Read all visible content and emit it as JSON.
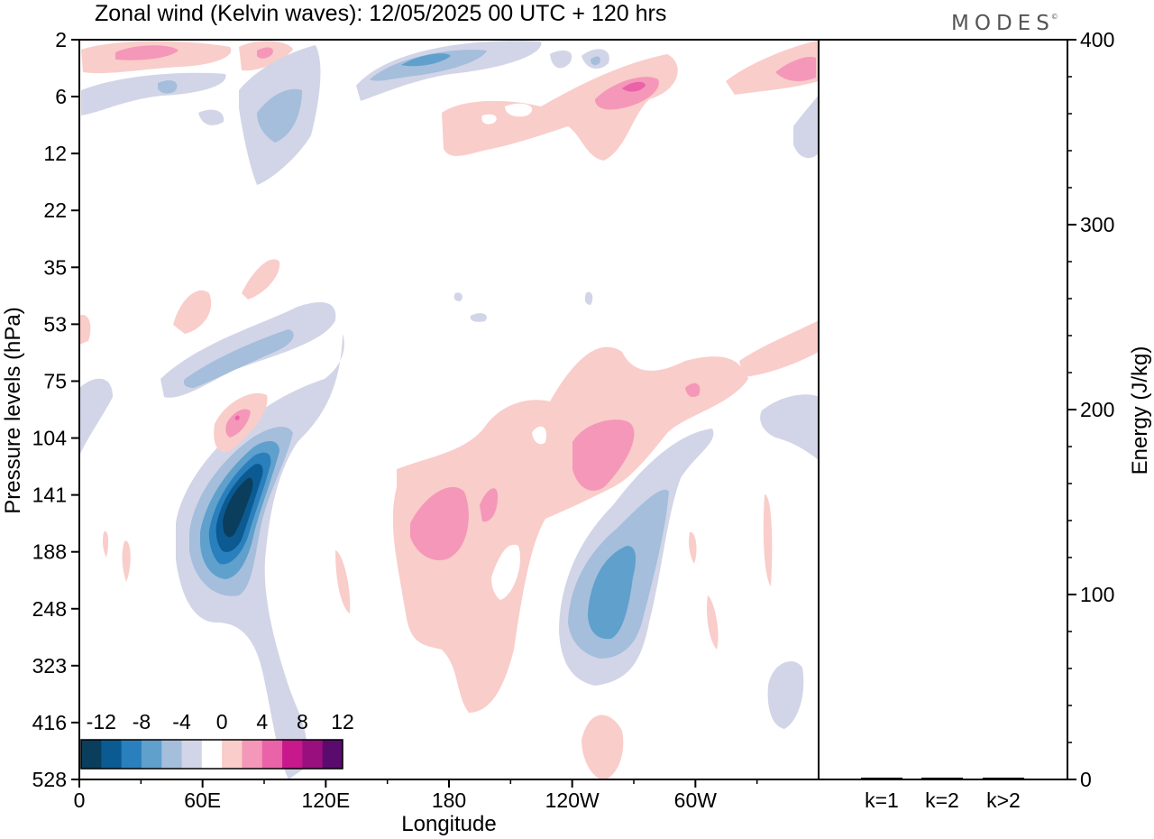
{
  "title": "Zonal wind (Kelvin waves):  12/05/2025  00 UTC  + 120 hrs",
  "brand": "MODES",
  "brand_mark": "©",
  "chart_data": [
    {
      "type": "heatmap",
      "variable": "Zonal wind (Kelvin waves)",
      "xlabel": "Longitude",
      "ylabel": "Pressure levels (hPa)",
      "x_ticks": [
        "0",
        "60E",
        "120E",
        "180",
        "120W",
        "60W"
      ],
      "x_range_deg": [
        0,
        360
      ],
      "y_ticks": [
        "2",
        "6",
        "12",
        "22",
        "35",
        "53",
        "75",
        "104",
        "141",
        "188",
        "248",
        "323",
        "416",
        "528"
      ],
      "colorbar": {
        "labels": [
          "-12",
          "-8",
          "-4",
          "0",
          "4",
          "8",
          "12"
        ],
        "levels": [
          -14,
          -12,
          -10,
          -8,
          -6,
          -4,
          -2,
          2,
          4,
          6,
          8,
          10,
          12,
          14
        ],
        "colors": [
          "#0b3d5c",
          "#0b5a92",
          "#2a7fbd",
          "#5fa0cc",
          "#a4bedc",
          "#d2d5e7",
          "#ffffff",
          "#f9cdca",
          "#f597b8",
          "#ea62a7",
          "#c7188c",
          "#9a0f7e",
          "#5b0a6e"
        ]
      },
      "features": [
        {
          "sign": "negative",
          "peak": -14,
          "lon": 60,
          "level": "141"
        },
        {
          "sign": "negative",
          "peak": -10,
          "lon": 238,
          "level": "248"
        },
        {
          "sign": "negative",
          "peak": -6,
          "lon": 80,
          "level": "12"
        },
        {
          "sign": "negative",
          "peak": -6,
          "lon": 148,
          "level": "2"
        },
        {
          "sign": "negative",
          "peak": -6,
          "lon": 55,
          "level": "75"
        },
        {
          "sign": "positive",
          "peak": 6,
          "lon": 170,
          "level": "141"
        },
        {
          "sign": "positive",
          "peak": 6,
          "lon": 252,
          "level": "104"
        },
        {
          "sign": "positive",
          "peak": 8,
          "lon": 268,
          "level": "6"
        },
        {
          "sign": "positive",
          "peak": 6,
          "lon": 35,
          "level": "2"
        },
        {
          "sign": "positive",
          "peak": 6,
          "lon": 350,
          "level": "2"
        },
        {
          "sign": "positive",
          "peak": 6,
          "lon": 58,
          "level": "104"
        }
      ],
      "grid": false,
      "legend": "bottom-left (colorbar)"
    },
    {
      "type": "bar",
      "categories": [
        "k=1",
        "k=2",
        "k>2"
      ],
      "values": [
        0.5,
        0.5,
        0.5
      ],
      "ylabel": "Energy (J/kg)",
      "ylim": [
        0,
        400
      ],
      "y_ticks": [
        "0",
        "100",
        "200",
        "300",
        "400"
      ],
      "grid": false
    }
  ]
}
